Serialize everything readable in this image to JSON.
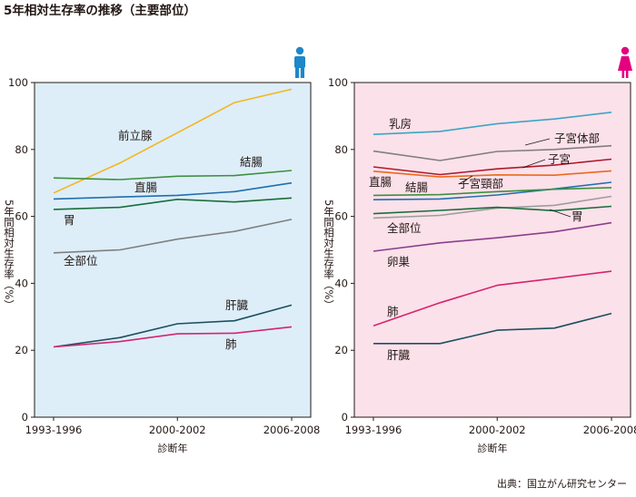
{
  "page_title": "5年相対生存率の推移（主要部位）",
  "source_note": "出典：国立がん研究センター",
  "icons": {
    "male": "male-person-icon",
    "female": "female-person-icon"
  },
  "colors": {
    "male_icon": "#1e88c8",
    "female_icon": "#e4007f",
    "left_plot_bg": "#ddeef9",
    "right_plot_bg": "#fbe1ea"
  },
  "chart_data": [
    {
      "type": "line",
      "panel": "male",
      "title": "",
      "xlabel": "診断年",
      "ylabel": "5年間相対生存率（%）",
      "ylim": [
        0,
        100
      ],
      "yticks": [
        0,
        20,
        40,
        60,
        80,
        100
      ],
      "x": [
        1994.5,
        1998,
        2001,
        2004,
        2007
      ],
      "xticks": [
        {
          "value": 1994.5,
          "label": "1993-1996"
        },
        {
          "value": 2001,
          "label": "2000-2002"
        },
        {
          "value": 2007,
          "label": "2006-2008"
        }
      ],
      "xlim": [
        1993.5,
        2008
      ],
      "grid": false,
      "series": [
        {
          "name": "前立腺",
          "color": "#f5b51c",
          "values": [
            67,
            76,
            85,
            94,
            98
          ]
        },
        {
          "name": "結腸",
          "color": "#3e8f3e",
          "values": [
            71.5,
            71,
            72,
            72.2,
            73.7
          ]
        },
        {
          "name": "直腸",
          "color": "#1f6fae",
          "values": [
            65.2,
            65.8,
            66.3,
            67.4,
            70
          ]
        },
        {
          "name": "胃",
          "color": "#1a6e3a",
          "values": [
            62.1,
            62.7,
            65.1,
            64.3,
            65.5
          ]
        },
        {
          "name": "全部位",
          "color": "#7f7f7f",
          "values": [
            49.1,
            50,
            53.2,
            55.5,
            59.1
          ]
        },
        {
          "name": "肝臓",
          "color": "#1d4f5e",
          "values": [
            21,
            23.8,
            27.9,
            28.8,
            33.5
          ]
        },
        {
          "name": "肺",
          "color": "#d6246e",
          "values": [
            21,
            22.6,
            24.9,
            25.1,
            27
          ]
        }
      ]
    },
    {
      "type": "line",
      "panel": "female",
      "title": "",
      "xlabel": "診断年",
      "ylabel": "5年間相対生存率（%）",
      "ylim": [
        0,
        100
      ],
      "yticks": [
        0,
        20,
        40,
        60,
        80,
        100
      ],
      "x": [
        1994.5,
        1998,
        2001,
        2004,
        2007
      ],
      "xticks": [
        {
          "value": 1994.5,
          "label": "1993-1996"
        },
        {
          "value": 2001,
          "label": "2000-2002"
        },
        {
          "value": 2007,
          "label": "2006-2008"
        }
      ],
      "xlim": [
        1993.5,
        2008
      ],
      "grid": false,
      "series": [
        {
          "name": "乳房",
          "color": "#3aa6c4",
          "values": [
            84.5,
            85.4,
            87.7,
            89.1,
            91.1
          ]
        },
        {
          "name": "子宮体部",
          "color": "#7f7f7f",
          "values": [
            79.5,
            76.7,
            79.4,
            80,
            81.1
          ]
        },
        {
          "name": "子宮",
          "color": "#b2182b",
          "values": [
            74.8,
            72.5,
            74.2,
            75.3,
            77.1
          ]
        },
        {
          "name": "子宮頸部",
          "color": "#ec6a1c",
          "values": [
            73.5,
            71.8,
            72.4,
            72.3,
            73.6
          ]
        },
        {
          "name": "直腸",
          "color": "#1f6fae",
          "values": [
            65,
            65.2,
            66.4,
            68.2,
            70.2
          ]
        },
        {
          "name": "結腸",
          "color": "#3e8f3e",
          "values": [
            66.3,
            66.5,
            67.4,
            68.1,
            68.6
          ]
        },
        {
          "name": "全部位",
          "color": "#9d9d9d",
          "values": [
            59.5,
            60.3,
            62.5,
            63.3,
            66
          ]
        },
        {
          "name": "胃",
          "color": "#1a6e3a",
          "values": [
            60.8,
            61.8,
            62.7,
            61.7,
            63
          ]
        },
        {
          "name": "卵巣",
          "color": "#8c3e8c",
          "values": [
            49.6,
            52.1,
            53.6,
            55.4,
            58.1
          ]
        },
        {
          "name": "肺",
          "color": "#d6246e",
          "values": [
            27.3,
            34.2,
            39.4,
            41.5,
            43.6
          ]
        },
        {
          "name": "肝臓",
          "color": "#1d4f5e",
          "values": [
            22,
            22,
            26,
            26.6,
            31
          ]
        }
      ]
    }
  ]
}
